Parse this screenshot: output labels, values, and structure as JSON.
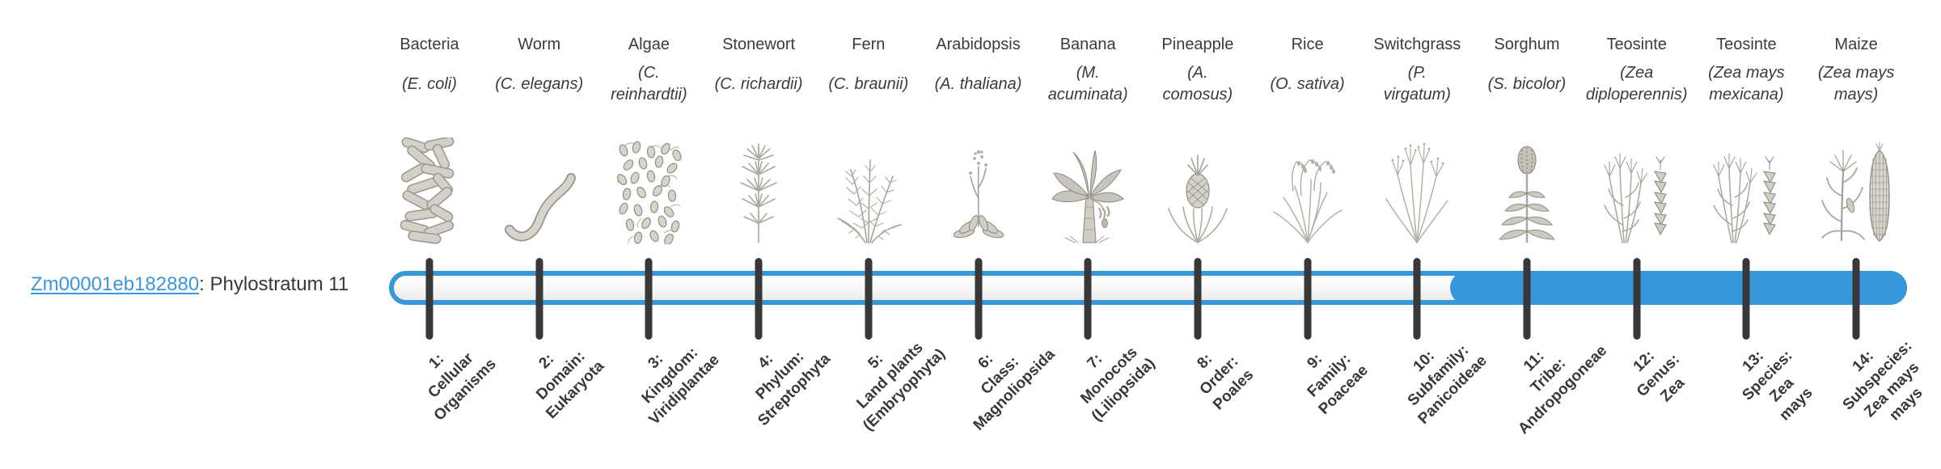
{
  "gene": {
    "id": "Zm00001eb182880",
    "suffix": ": Phylostratum 11",
    "phylostratum": 11
  },
  "colors": {
    "accent_blue": "#3797db",
    "link_blue": "#3a96dd",
    "ink_dark": "#383838"
  },
  "organisms": [
    {
      "name": "Bacteria",
      "species": "(E. coli)",
      "icon": "bacteria"
    },
    {
      "name": "Worm",
      "species": "(C. elegans)",
      "icon": "worm"
    },
    {
      "name": "Algae",
      "species": "(C.\nreinhardtii)",
      "icon": "algae"
    },
    {
      "name": "Stonewort",
      "species": "(C. richardii)",
      "icon": "stonewort"
    },
    {
      "name": "Fern",
      "species": "(C. braunii)",
      "icon": "fern"
    },
    {
      "name": "Arabidopsis",
      "species": "(A. thaliana)",
      "icon": "arabidopsis"
    },
    {
      "name": "Banana",
      "species": "(M.\nacuminata)",
      "icon": "banana"
    },
    {
      "name": "Pineapple",
      "species": "(A.\ncomosus)",
      "icon": "pineapple"
    },
    {
      "name": "Rice",
      "species": "(O. sativa)",
      "icon": "rice"
    },
    {
      "name": "Switchgrass",
      "species": "(P.\nvirgatum)",
      "icon": "switchgrass"
    },
    {
      "name": "Sorghum",
      "species": "(S. bicolor)",
      "icon": "sorghum"
    },
    {
      "name": "Teosinte",
      "species": "(Zea\ndiploperennis)",
      "icon": "teosinte"
    },
    {
      "name": "Teosinte",
      "species": "(Zea mays\nmexicana)",
      "icon": "teosinte"
    },
    {
      "name": "Maize",
      "species": "(Zea mays\nmays)",
      "icon": "maize"
    }
  ],
  "phylostrata": [
    {
      "label": "1:\nCellular\nOrganisms"
    },
    {
      "label": "2:\nDomain:\nEukaryota"
    },
    {
      "label": "3:\nKingdom:\nViridiplantae"
    },
    {
      "label": "4:\nPhylum:\nStreptophyta"
    },
    {
      "label": "5:\nLand plants\n(Embryophyta)"
    },
    {
      "label": "6:\nClass:\nMagnoliopsida"
    },
    {
      "label": "7:\nMonocots\n(Liliopsida)"
    },
    {
      "label": "8:\nOrder:\nPoales"
    },
    {
      "label": "9:\nFamily:\nPoaceae"
    },
    {
      "label": "10:\nSubfamily:\nPanicoideae"
    },
    {
      "label": "11:\nTribe:\nAndropogoneae"
    },
    {
      "label": "12:\nGenus:\nZea"
    },
    {
      "label": "13:\nSpecies:\nZea\nmays"
    },
    {
      "label": "14:\nSubspecies:\nZea mays\nmays"
    }
  ]
}
